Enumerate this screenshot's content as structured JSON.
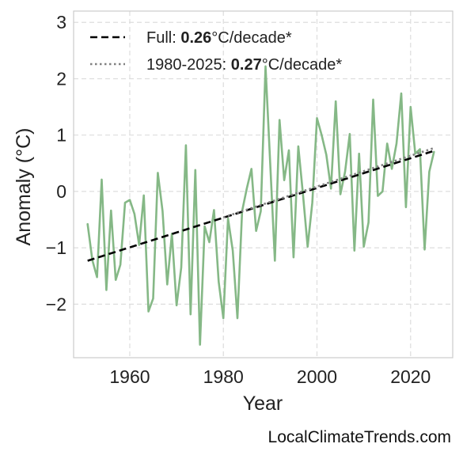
{
  "chart_data": {
    "type": "line",
    "xlabel": "Year",
    "ylabel": "Anomaly (°C)",
    "xlim": [
      1948,
      2029
    ],
    "ylim": [
      -2.95,
      3.2
    ],
    "x_ticks": [
      1960,
      1980,
      2000,
      2020
    ],
    "y_ticks": [
      -2,
      -1,
      0,
      1,
      2,
      3
    ],
    "y_tick_labels": [
      "−2",
      "−1",
      "0",
      "1",
      "2",
      "3"
    ],
    "grid": true,
    "legend_position": "top-left",
    "series": [
      {
        "color": "#85b886",
        "x": [
          1951,
          1952,
          1953,
          1954,
          1955,
          1956,
          1957,
          1958,
          1959,
          1960,
          1961,
          1962,
          1963,
          1964,
          1965,
          1966,
          1967,
          1968,
          1969,
          1970,
          1971,
          1972,
          1973,
          1974,
          1975,
          1976,
          1977,
          1978,
          1979,
          1980,
          1981,
          1982,
          1983,
          1984,
          1985,
          1986,
          1987,
          1988,
          1989,
          1990,
          1991,
          1992,
          1993,
          1994,
          1995,
          1996,
          1997,
          1998,
          1999,
          2000,
          2001,
          2002,
          2003,
          2004,
          2005,
          2006,
          2007,
          2008,
          2009,
          2010,
          2011,
          2012,
          2013,
          2014,
          2015,
          2016,
          2017,
          2018,
          2019,
          2020,
          2021,
          2022,
          2023,
          2024,
          2025
        ],
        "y": [
          -0.58,
          -1.22,
          -1.52,
          0.21,
          -1.75,
          -0.34,
          -1.57,
          -1.3,
          -0.2,
          -0.15,
          -0.4,
          -0.95,
          -0.07,
          -2.13,
          -1.9,
          0.33,
          -0.35,
          -1.65,
          -0.75,
          -2.02,
          -1.35,
          0.82,
          -2.18,
          0.38,
          -2.72,
          -0.62,
          -0.9,
          -0.33,
          -1.6,
          -2.25,
          -0.48,
          -1.05,
          -2.25,
          -0.35,
          0.05,
          0.4,
          -0.7,
          -0.35,
          2.22,
          0.5,
          -1.23,
          1.27,
          0.2,
          0.73,
          -1.17,
          0.8,
          -0.05,
          -0.98,
          -0.2,
          1.3,
          1.0,
          0.65,
          0.05,
          1.6,
          -0.05,
          0.35,
          1.02,
          -1.05,
          0.67,
          -0.98,
          -0.55,
          1.63,
          -0.08,
          0.0,
          0.85,
          0.4,
          0.85,
          1.74,
          -0.28,
          1.5,
          0.67,
          0.75,
          -1.03,
          0.35,
          0.7
        ]
      },
      {
        "name": "Full: ",
        "name_bold": "0.26",
        "name_suffix": "°C/decade*",
        "color": "#000000",
        "style": "dashed",
        "x": [
          1951,
          2025
        ],
        "y": [
          -1.23,
          0.72
        ]
      },
      {
        "name": "1980-2025: ",
        "name_bold": "0.27",
        "name_suffix": "°C/decade*",
        "color": "#808080",
        "style": "dotted",
        "x": [
          1980,
          2025
        ],
        "y": [
          -0.46,
          0.77
        ]
      }
    ]
  },
  "watermark": "LocalClimateTrends.com"
}
